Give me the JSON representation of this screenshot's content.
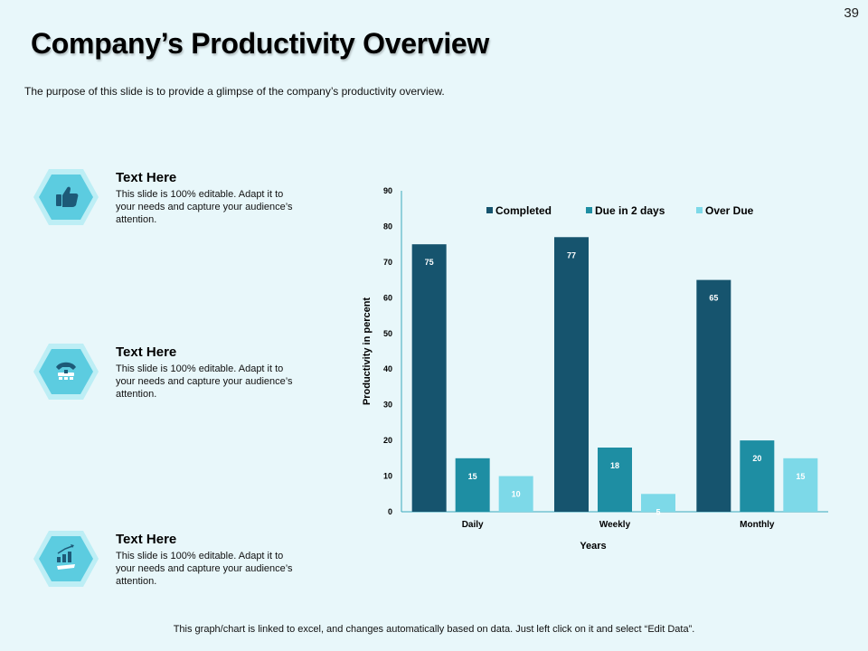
{
  "page_number": "39",
  "title": "Company’s Productivity Overview",
  "subtitle": "The purpose of this slide is to provide a glimpse of the company’s productivity overview.",
  "features": [
    {
      "icon": "thumbs-up-icon",
      "title": "Text Here",
      "text": "This slide is 100% editable. Adapt it to your needs and capture your audience’s attention."
    },
    {
      "icon": "telephone-icon",
      "title": "Text Here",
      "text": "This slide is 100% editable. Adapt it to your needs and capture your audience’s attention."
    },
    {
      "icon": "growth-chart-icon",
      "title": "Text Here",
      "text": "This slide is 100% editable. Adapt it to your needs and capture your audience’s attention."
    }
  ],
  "footer": "This graph/chart is linked to excel, and changes automatically based on data. Just left click on it and select “Edit Data”.",
  "colors": {
    "background": "#e8f7fa",
    "completed": "#16546e",
    "due": "#1e8ea3",
    "over_due": "#7dd9e8",
    "hex_outer": "#bdeef5",
    "hex_inner": "#5ccce0"
  },
  "chart_data": {
    "type": "bar",
    "title": "",
    "xlabel": "Years",
    "ylabel": "Productivity in percent",
    "categories": [
      "Daily",
      "Weekly",
      "Monthly"
    ],
    "series": [
      {
        "name": "Completed",
        "values": [
          75,
          77,
          65
        ]
      },
      {
        "name": "Due in 2 days",
        "values": [
          15,
          18,
          20
        ]
      },
      {
        "name": "Over Due",
        "values": [
          10,
          5,
          15
        ]
      }
    ],
    "ylim": [
      0,
      90
    ],
    "yticks": [
      0,
      10,
      20,
      30,
      40,
      50,
      60,
      70,
      80,
      90
    ],
    "legend": "top",
    "grid": false
  }
}
